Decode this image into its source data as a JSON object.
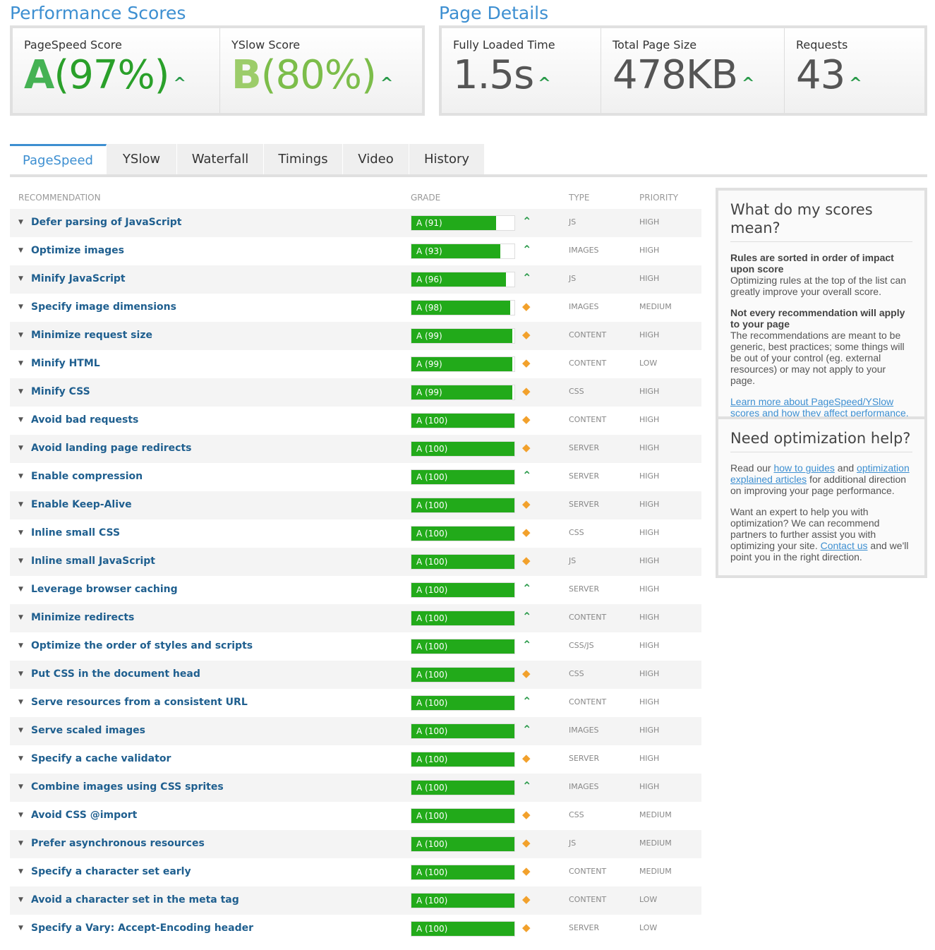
{
  "perf": {
    "title": "Performance Scores",
    "pagespeed": {
      "label": "PageSpeed Score",
      "grade": "A",
      "pct": "(97%)"
    },
    "yslow": {
      "label": "YSlow Score",
      "grade": "B",
      "pct": "(80%)"
    }
  },
  "details": {
    "title": "Page Details",
    "items": [
      {
        "label": "Fully Loaded Time",
        "value": "1.5s"
      },
      {
        "label": "Total Page Size",
        "value": "478KB"
      },
      {
        "label": "Requests",
        "value": "43"
      }
    ]
  },
  "tabs": [
    "PageSpeed",
    "YSlow",
    "Waterfall",
    "Timings",
    "Video",
    "History"
  ],
  "columns": {
    "rec": "RECOMMENDATION",
    "grade": "GRADE",
    "type": "TYPE",
    "priority": "PRIORITY"
  },
  "colors": {
    "bar": "#22aa1a",
    "up": "#2a9a4a",
    "diamond": "#f2a12c",
    "accent": "#3d8fd1"
  },
  "rows": [
    [
      "Defer parsing of JavaScript",
      91,
      "up",
      "JS",
      "HIGH"
    ],
    [
      "Optimize images",
      93,
      "up",
      "IMAGES",
      "HIGH"
    ],
    [
      "Minify JavaScript",
      96,
      "up",
      "JS",
      "HIGH"
    ],
    [
      "Specify image dimensions",
      98,
      "diamond",
      "IMAGES",
      "MEDIUM"
    ],
    [
      "Minimize request size",
      99,
      "diamond",
      "CONTENT",
      "HIGH"
    ],
    [
      "Minify HTML",
      99,
      "diamond",
      "CONTENT",
      "LOW"
    ],
    [
      "Minify CSS",
      99,
      "diamond",
      "CSS",
      "HIGH"
    ],
    [
      "Avoid bad requests",
      100,
      "diamond",
      "CONTENT",
      "HIGH"
    ],
    [
      "Avoid landing page redirects",
      100,
      "diamond",
      "SERVER",
      "HIGH"
    ],
    [
      "Enable compression",
      100,
      "up",
      "SERVER",
      "HIGH"
    ],
    [
      "Enable Keep-Alive",
      100,
      "diamond",
      "SERVER",
      "HIGH"
    ],
    [
      "Inline small CSS",
      100,
      "diamond",
      "CSS",
      "HIGH"
    ],
    [
      "Inline small JavaScript",
      100,
      "diamond",
      "JS",
      "HIGH"
    ],
    [
      "Leverage browser caching",
      100,
      "up",
      "SERVER",
      "HIGH"
    ],
    [
      "Minimize redirects",
      100,
      "up",
      "CONTENT",
      "HIGH"
    ],
    [
      "Optimize the order of styles and scripts",
      100,
      "up",
      "CSS/JS",
      "HIGH"
    ],
    [
      "Put CSS in the document head",
      100,
      "diamond",
      "CSS",
      "HIGH"
    ],
    [
      "Serve resources from a consistent URL",
      100,
      "up",
      "CONTENT",
      "HIGH"
    ],
    [
      "Serve scaled images",
      100,
      "up",
      "IMAGES",
      "HIGH"
    ],
    [
      "Specify a cache validator",
      100,
      "diamond",
      "SERVER",
      "HIGH"
    ],
    [
      "Combine images using CSS sprites",
      100,
      "up",
      "IMAGES",
      "HIGH"
    ],
    [
      "Avoid CSS @import",
      100,
      "diamond",
      "CSS",
      "MEDIUM"
    ],
    [
      "Prefer asynchronous resources",
      100,
      "diamond",
      "JS",
      "MEDIUM"
    ],
    [
      "Specify a character set early",
      100,
      "diamond",
      "CONTENT",
      "MEDIUM"
    ],
    [
      "Avoid a character set in the meta tag",
      100,
      "diamond",
      "CONTENT",
      "LOW"
    ],
    [
      "Specify a Vary: Accept-Encoding header",
      100,
      "diamond",
      "SERVER",
      "LOW"
    ]
  ],
  "scores_box": {
    "title": "What do my scores mean?",
    "h1": "Rules are sorted in order of impact upon score",
    "p1": "Optimizing rules at the top of the list can greatly improve your overall score.",
    "h2": "Not every recommendation will apply to your page",
    "p2": "The recommendations are meant to be generic, best practices; some things will be out of your control (eg. external resources) or may not apply to your page.",
    "link": "Learn more about PageSpeed/YSlow scores and how they affect performance."
  },
  "help_box": {
    "title": "Need optimization help?",
    "t1": "Read our ",
    "l1": "how to guides",
    "t2": " and ",
    "l2": "optimization explained articles",
    "t3": " for additional direction on improving your page performance.",
    "t4": "Want an expert to help you with optimization? We can recommend partners to further assist you with optimizing your site. ",
    "l3": "Contact us",
    "t5": " and we'll point you in the right direction."
  }
}
